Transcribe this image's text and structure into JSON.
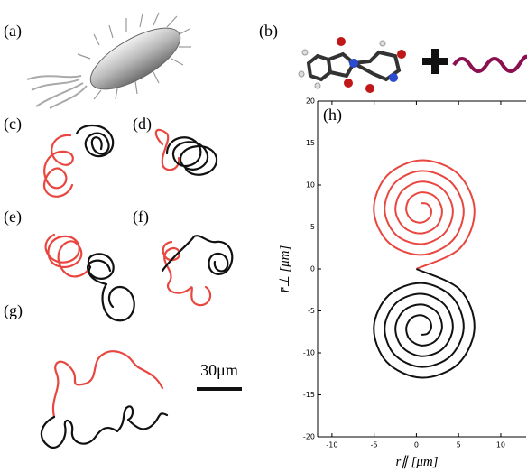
{
  "panel_labels": [
    "(a)",
    "(b)",
    "(c)",
    "(d)",
    "(e)",
    "(f)",
    "(g)"
  ],
  "scale_bar": "30μm",
  "chart_data": {
    "type": "line",
    "label": "(h)",
    "x_label": "r̄∥  [μm]",
    "y_label": "r̄⊥  [μm]",
    "xlim": [
      -11.7,
      13
    ],
    "ylim": [
      -20,
      20
    ],
    "xticks": [
      -10,
      -5,
      0,
      5,
      10
    ],
    "yticks": [
      -20,
      -15,
      -10,
      -5,
      0,
      5,
      10,
      15,
      20
    ],
    "series": [
      {
        "color": "#e8463f",
        "x": [
          0,
          5.15,
          6.88,
          4.93,
          0.6,
          -3.5,
          -5.04,
          -3.27,
          0.6,
          4.25,
          5.6,
          4.02,
          0.6,
          -2.6,
          -3.76,
          -2.37,
          0.6,
          3.34,
          4.32,
          3.12,
          0.6,
          -1.69,
          -2.48,
          -1.46,
          0.6,
          2.44,
          3.04,
          2.21,
          0.6,
          -0.79,
          -1.2,
          -0.56,
          0.6,
          1.53,
          1.76,
          1.31,
          0.6
        ],
        "values": [
          0,
          2.45,
          7,
          11.33,
          12.96,
          11.1,
          7,
          3.13,
          1.68,
          3.35,
          7,
          10.42,
          11.68,
          10.2,
          7,
          4.03,
          2.96,
          4.26,
          7,
          9.52,
          10.4,
          9.29,
          7,
          4.94,
          4.24,
          5.16,
          7,
          8.61,
          9.12,
          8.39,
          7,
          5.84,
          5.52,
          6.07,
          7,
          7.71,
          7.84
        ]
      },
      {
        "color": "#111111",
        "x": [
          0,
          5.15,
          6.88,
          4.93,
          0.6,
          -3.5,
          -5.04,
          -3.27,
          0.6,
          4.25,
          5.6,
          4.02,
          0.6,
          -2.6,
          -3.76,
          -2.37,
          0.6,
          3.34,
          4.32,
          3.12,
          0.6,
          -1.69,
          -2.48,
          -1.46,
          0.6,
          2.44,
          3.04,
          2.21,
          0.6,
          -0.79,
          -1.2,
          -0.56,
          0.6,
          1.53,
          1.76,
          1.31,
          0.6
        ],
        "values": [
          0,
          -2.45,
          -7,
          -11.33,
          -12.96,
          -11.1,
          -7,
          -3.13,
          -1.68,
          -3.35,
          -7,
          -10.42,
          -11.68,
          -10.2,
          -7,
          -4.03,
          -2.96,
          -4.26,
          -7,
          -9.52,
          -10.4,
          -9.29,
          -7,
          -4.94,
          -4.24,
          -5.16,
          -7,
          -8.61,
          -9.12,
          -8.39,
          -7,
          -5.84,
          -5.52,
          -6.07,
          -7,
          -7.71,
          -7.84
        ]
      }
    ]
  }
}
